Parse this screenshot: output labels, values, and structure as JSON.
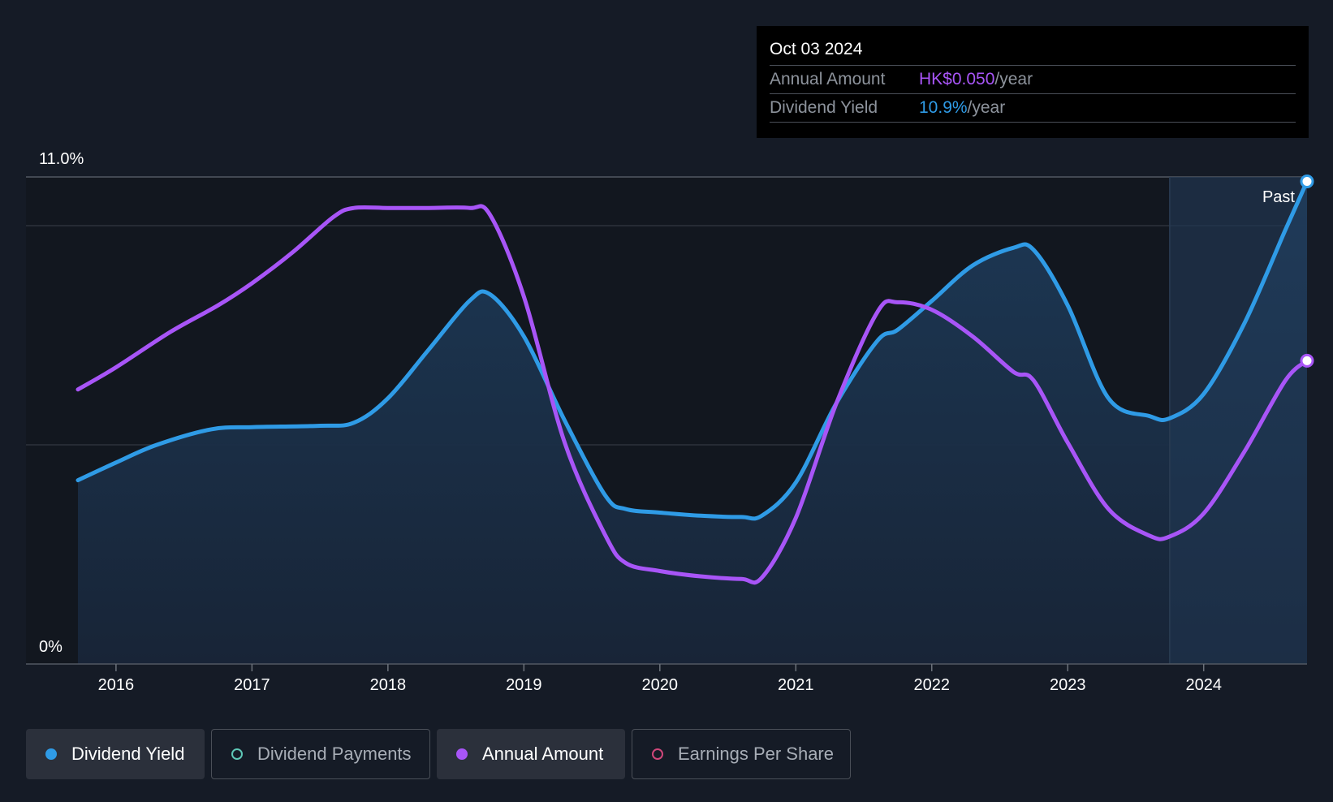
{
  "tooltip": {
    "date": "Oct 03 2024",
    "annual_label": "Annual Amount",
    "annual_value": "HK$0.050",
    "annual_unit": "/year",
    "yield_label": "Dividend Yield",
    "yield_value": "10.9%",
    "yield_unit": "/year"
  },
  "legend": [
    {
      "label": "Dividend Yield",
      "color": "#2f9be6",
      "active": true
    },
    {
      "label": "Dividend Payments",
      "color": "#5ec7b6",
      "active": false
    },
    {
      "label": "Annual Amount",
      "color": "#a855f7",
      "active": true
    },
    {
      "label": "Earnings Per Share",
      "color": "#d0477a",
      "active": false
    }
  ],
  "chart_data": {
    "type": "line",
    "title": "",
    "xlabel": "",
    "ylabel": "",
    "y_tick_labels": [
      "11.0%",
      "0%"
    ],
    "ylim": [
      0,
      11.0
    ],
    "xlim": [
      2015.72,
      2024.76
    ],
    "x_ticks": [
      2016,
      2017,
      2018,
      2019,
      2020,
      2021,
      2022,
      2023,
      2024
    ],
    "past_start": 2023.75,
    "past_label": "Past",
    "grid": true,
    "legend_position": "bottom",
    "series": [
      {
        "name": "Dividend Yield",
        "color": "#2f9be6",
        "area": true,
        "x": [
          2015.72,
          2016.0,
          2016.3,
          2016.7,
          2017.0,
          2017.5,
          2017.75,
          2018.0,
          2018.3,
          2018.6,
          2018.75,
          2019.0,
          2019.3,
          2019.6,
          2019.75,
          2020.0,
          2020.3,
          2020.6,
          2020.75,
          2021.0,
          2021.3,
          2021.6,
          2021.75,
          2022.0,
          2022.3,
          2022.6,
          2022.75,
          2023.0,
          2023.3,
          2023.6,
          2023.75,
          2024.0,
          2024.3,
          2024.6,
          2024.76
        ],
        "y": [
          4.15,
          4.55,
          4.95,
          5.3,
          5.35,
          5.38,
          5.45,
          6.0,
          7.1,
          8.2,
          8.35,
          7.4,
          5.5,
          3.8,
          3.5,
          3.42,
          3.35,
          3.32,
          3.35,
          4.1,
          5.9,
          7.3,
          7.55,
          8.2,
          9.0,
          9.4,
          9.35,
          8.1,
          6.0,
          5.6,
          5.55,
          6.1,
          7.7,
          9.8,
          10.9
        ]
      },
      {
        "name": "Annual Amount",
        "color": "#a855f7",
        "area": false,
        "x": [
          2015.72,
          2016.0,
          2016.4,
          2016.75,
          2017.0,
          2017.3,
          2017.6,
          2017.75,
          2018.0,
          2018.3,
          2018.6,
          2018.75,
          2019.0,
          2019.3,
          2019.6,
          2019.75,
          2020.0,
          2020.3,
          2020.6,
          2020.75,
          2021.0,
          2021.3,
          2021.6,
          2021.75,
          2022.0,
          2022.3,
          2022.6,
          2022.75,
          2023.0,
          2023.3,
          2023.6,
          2023.75,
          2024.0,
          2024.3,
          2024.6,
          2024.76
        ],
        "y": [
          6.2,
          6.7,
          7.5,
          8.1,
          8.6,
          9.3,
          10.1,
          10.3,
          10.3,
          10.3,
          10.3,
          10.15,
          8.3,
          5.0,
          2.9,
          2.28,
          2.1,
          1.98,
          1.92,
          1.95,
          3.3,
          5.9,
          7.95,
          8.17,
          8.0,
          7.4,
          6.6,
          6.4,
          5.0,
          3.5,
          2.9,
          2.88,
          3.4,
          4.8,
          6.4,
          6.85
        ]
      }
    ]
  }
}
